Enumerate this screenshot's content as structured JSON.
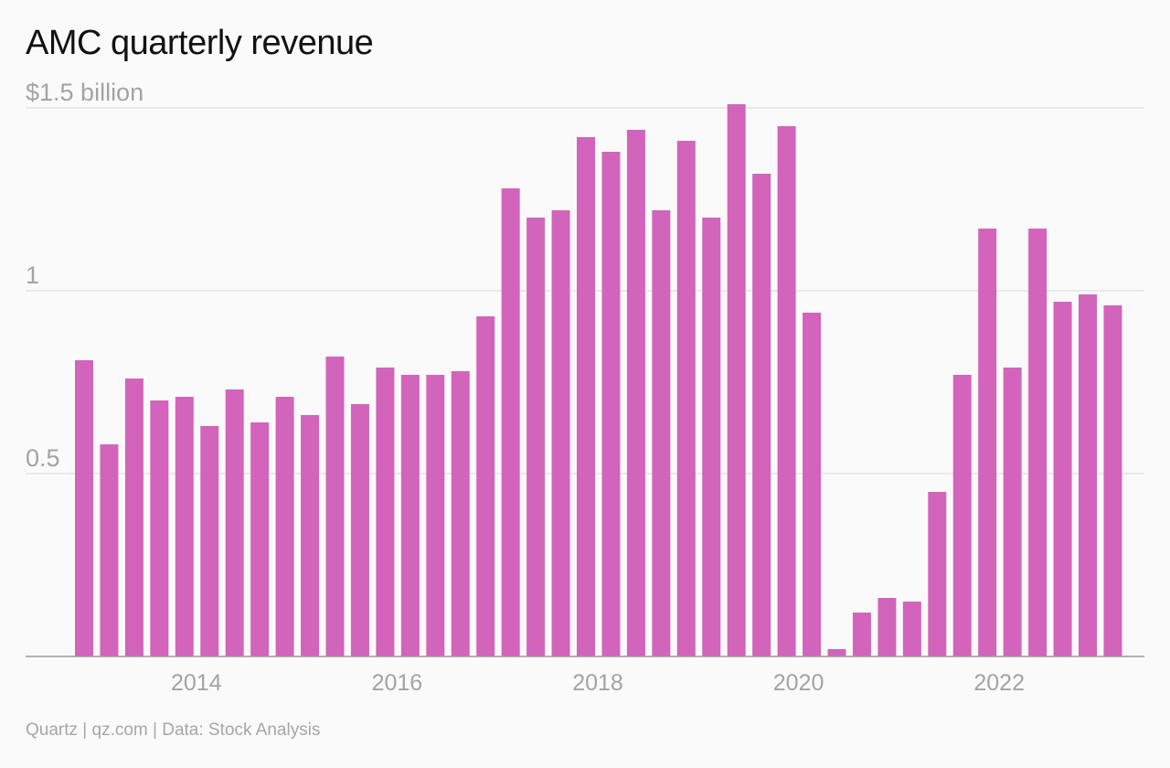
{
  "header": {
    "title": "AMC quarterly revenue"
  },
  "footer": {
    "source": "Quartz | qz.com | Data: Stock Analysis"
  },
  "colors": {
    "bar": "#d264bb",
    "grid": "#e3e3e3",
    "tick_text": "#a3a3a3",
    "baseline": "#9a9a9a"
  },
  "chart_data": {
    "type": "bar",
    "title": "AMC quarterly revenue",
    "xlabel": "",
    "ylabel": "",
    "ylim": [
      0,
      1.5
    ],
    "y_ticks": [
      {
        "value": 1.5,
        "label": "$1.5 billion"
      },
      {
        "value": 1.0,
        "label": "1"
      },
      {
        "value": 0.5,
        "label": "0.5"
      }
    ],
    "x_ticks": [
      "2014",
      "2016",
      "2018",
      "2020",
      "2022"
    ],
    "grid": true,
    "legend": "none",
    "categories": [
      "2013 Q1",
      "2013 Q2",
      "2013 Q3",
      "2013 Q4",
      "2014 Q1",
      "2014 Q2",
      "2014 Q3",
      "2014 Q4",
      "2015 Q1",
      "2015 Q2",
      "2015 Q3",
      "2015 Q4",
      "2016 Q1",
      "2016 Q2",
      "2016 Q3",
      "2016 Q4",
      "2017 Q1",
      "2017 Q2",
      "2017 Q3",
      "2017 Q4",
      "2018 Q1",
      "2018 Q2",
      "2018 Q3",
      "2018 Q4",
      "2019 Q1",
      "2019 Q2",
      "2019 Q3",
      "2019 Q4",
      "2020 Q1",
      "2020 Q2",
      "2020 Q3",
      "2020 Q4",
      "2021 Q1",
      "2021 Q2",
      "2021 Q3",
      "2021 Q4",
      "2022 Q1",
      "2022 Q2",
      "2022 Q3",
      "2022 Q4",
      "2023 Q1",
      "2023 Q2"
    ],
    "values": [
      0.81,
      0.58,
      0.76,
      0.7,
      0.71,
      0.63,
      0.73,
      0.64,
      0.71,
      0.66,
      0.82,
      0.69,
      0.79,
      0.77,
      0.77,
      0.78,
      0.93,
      1.28,
      1.2,
      1.22,
      1.42,
      1.38,
      1.44,
      1.22,
      1.41,
      1.2,
      1.51,
      1.32,
      1.45,
      0.94,
      0.02,
      0.12,
      0.16,
      0.15,
      0.45,
      0.77,
      1.17,
      0.79,
      1.17,
      0.97,
      0.99,
      0.96
    ]
  }
}
